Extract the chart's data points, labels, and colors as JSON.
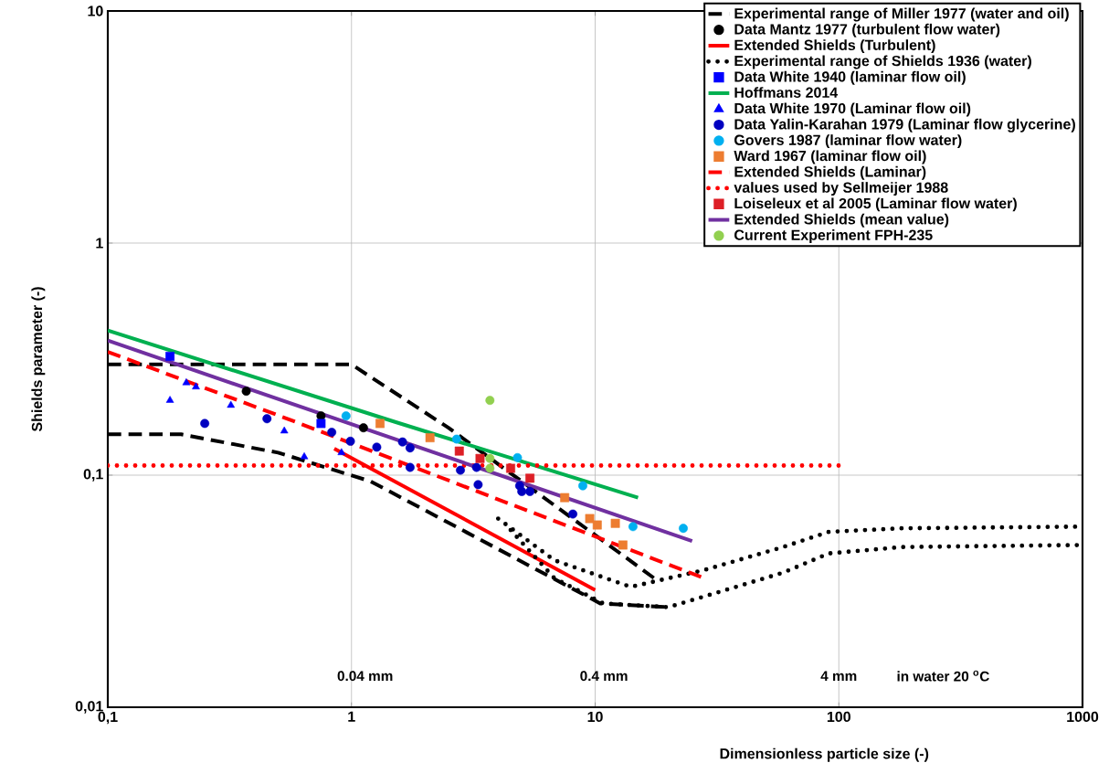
{
  "chart_data": {
    "type": "line",
    "xlabel": "Dimensionless particle size  (-)",
    "ylabel": "Shields parameter  (-)",
    "log": "xy",
    "grid": true,
    "legend": "top right",
    "xlim": [
      0.1,
      1000
    ],
    "ylim": [
      0.01,
      10
    ],
    "xticks": [
      {
        "value": 0.1,
        "label": "0,1"
      },
      1,
      10,
      100,
      1000
    ],
    "yticks": [
      {
        "value": 0.01,
        "label": "0,01"
      },
      {
        "value": 0.1,
        "label": "0,1"
      },
      1,
      10
    ],
    "annotations": [
      "0.04 mm",
      "0.4 mm",
      "4 mm",
      "in water 20 $^{o}$C"
    ],
    "series": [
      {
        "name": "Experimental range of Miller 1977 (water and oil)",
        "line_style": "dashed",
        "color": "#000000",
        "x": [
          0.1,
          1,
          2.5,
          18.1
        ],
        "values": [
          0.3,
          0.3,
          0.16,
          0.035
        ]
      },
      {
        "line_style": "dashed",
        "color": "#000000",
        "x": [
          0.1,
          0.2,
          0.5,
          1.2,
          10.5,
          20
        ],
        "values": [
          0.15,
          0.15,
          0.125,
          0.094,
          0.028,
          0.027
        ]
      },
      {
        "name": "Data Mantz 1977 (turbulent flow water)",
        "type": "scatter",
        "marker": "circle",
        "color": "#000000",
        "x": [
          0.37,
          0.75,
          1.12
        ],
        "values": [
          0.23,
          0.18,
          0.16
        ]
      },
      {
        "name": "Extended Shields (Turbulent)",
        "line_style": "solid",
        "color": "#ff0000",
        "x": [
          0.85,
          10
        ],
        "values": [
          0.13,
          0.032
        ]
      },
      {
        "name": "Experimental range of Shields 1936 (water)",
        "line_style": "dotted",
        "color": "#000000",
        "x": [
          4,
          6.8,
          14,
          28,
          59,
          91,
          181,
          1000
        ],
        "values": [
          0.065,
          0.043,
          0.033,
          0.039,
          0.049,
          0.057,
          0.059,
          0.06
        ]
      },
      {
        "line_style": "dotted",
        "color": "#000000",
        "x": [
          4.5,
          6.8,
          10.8,
          20,
          28,
          59,
          91,
          181,
          1000
        ],
        "values": [
          0.058,
          0.036,
          0.028,
          0.027,
          0.03,
          0.038,
          0.046,
          0.049,
          0.05
        ]
      },
      {
        "name": "Data White 1940 (laminar flow oil)",
        "type": "scatter",
        "marker": "square",
        "color": "#0000ff",
        "x": [
          0.18,
          0.75
        ],
        "values": [
          0.325,
          0.167
        ]
      },
      {
        "name": "Hoffmans 2014",
        "line_style": "solid",
        "color": "#00b050",
        "x": [
          0.1,
          1.5,
          15
        ],
        "values": [
          0.42,
          0.17,
          0.08
        ]
      },
      {
        "name": "Data White 1970 (Laminar flow oil)",
        "type": "scatter",
        "marker": "triangle",
        "color": "#0000ff",
        "x": [
          0.18,
          0.21,
          0.23,
          0.32,
          0.53,
          0.64,
          0.91
        ],
        "values": [
          0.21,
          0.25,
          0.24,
          0.2,
          0.155,
          0.12,
          0.125
        ]
      },
      {
        "name": "Data Yalin-Karahan 1979 (Laminar flow glycerine)",
        "type": "scatter",
        "marker": "circle",
        "color": "#0000c0",
        "x": [
          0.25,
          0.45,
          0.83,
          0.99,
          1.27,
          1.62,
          1.74,
          1.74,
          2.8,
          3.26,
          3.31,
          4.9,
          5,
          5.4,
          8.1
        ],
        "values": [
          0.167,
          0.175,
          0.153,
          0.14,
          0.132,
          0.139,
          0.131,
          0.108,
          0.105,
          0.108,
          0.091,
          0.09,
          0.085,
          0.085,
          0.068
        ]
      },
      {
        "name": "Govers 1987 (laminar flow water)",
        "type": "scatter",
        "marker": "circle",
        "color": "#00b0f0",
        "x": [
          0.95,
          2.7,
          4.8,
          8.9,
          14.3,
          23
        ],
        "values": [
          0.18,
          0.143,
          0.119,
          0.09,
          0.06,
          0.059
        ]
      },
      {
        "name": "Ward 1967 (laminar flow oil)",
        "type": "scatter",
        "marker": "square",
        "color": "#ed7d31",
        "x": [
          1.31,
          2.1,
          7.5,
          9.5,
          10.2,
          12.1,
          13
        ],
        "values": [
          0.167,
          0.145,
          0.08,
          0.065,
          0.061,
          0.062,
          0.05
        ]
      },
      {
        "name": "Extended Shields (Laminar)",
        "line_style": "dashed",
        "color": "#ff0000",
        "x": [
          0.1,
          0.53,
          28
        ],
        "values": [
          0.34,
          0.177,
          0.036
        ]
      },
      {
        "name": "values used by Sellmeijer 1988",
        "line_style": "dotted",
        "color": "#ff0000",
        "x": [
          0.1,
          100
        ],
        "values": [
          0.11,
          0.11
        ]
      },
      {
        "name": "Loiseleux et al 2005 (Laminar flow water)",
        "type": "scatter",
        "marker": "square",
        "color": "#dd1f26",
        "x": [
          2.77,
          3.37,
          4.5,
          5.4
        ],
        "values": [
          0.127,
          0.118,
          0.107,
          0.097
        ]
      },
      {
        "name": "Extended Shields (mean value)",
        "line_style": "solid",
        "color": "#7030a0",
        "x": [
          0.1,
          25
        ],
        "values": [
          0.38,
          0.052
        ]
      },
      {
        "name": "Current Experiment FPH-235",
        "type": "scatter",
        "marker": "circle",
        "color": "#92d050",
        "x": [
          3.7,
          3.7,
          3.7
        ],
        "values": [
          0.21,
          0.118,
          0.107
        ]
      }
    ]
  }
}
